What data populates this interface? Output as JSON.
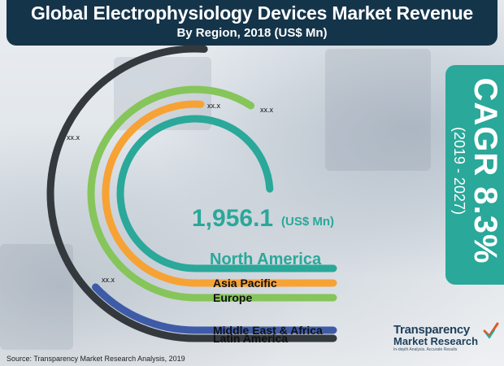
{
  "header": {
    "title": "Global Electrophysiology Devices Market Revenue",
    "subtitle": "By Region, 2018 (US$ Mn)"
  },
  "cagr": {
    "label": "CAGR 8.3%",
    "period": "(2019 - 2027)"
  },
  "source": "Source: Transparency Market Research Analysis, 2019",
  "logo": {
    "line1": "Transparency",
    "line2": "Market Research",
    "tagline": "In-depth Analysis. Accurate Results",
    "colors": {
      "text": "#1d3f5c",
      "accent": "#2aa89a",
      "check": "#e05a2a"
    }
  },
  "chart_data": {
    "type": "radial-bar",
    "title": "Global Electrophysiology Devices Market Revenue",
    "subtitle": "By Region, 2018 (US$ Mn)",
    "unit": "US$ Mn",
    "highlight": {
      "region": "North America",
      "value": 1956.1,
      "value_label": "1,956.1",
      "unit_label": "(US$ Mn)"
    },
    "series": [
      {
        "name": "North America",
        "value": 1956.1,
        "share": 0.74,
        "label": "",
        "color": "#2aa89a"
      },
      {
        "name": "Asia Pacific",
        "value": null,
        "share": 0.51,
        "label": "xx.x",
        "color": "#f7a234"
      },
      {
        "name": "Europe",
        "value": null,
        "share": 0.59,
        "label": "xx.x",
        "color": "#86c55a"
      },
      {
        "name": "Middle East & Africa",
        "value": null,
        "share": 0.13,
        "label": "xx.x",
        "color": "#3e5ba8"
      },
      {
        "name": "Latin America",
        "value": null,
        "share": 0.51,
        "label": "xx.x",
        "color": "#34393e"
      }
    ],
    "legend_placement": "bottom-center"
  }
}
